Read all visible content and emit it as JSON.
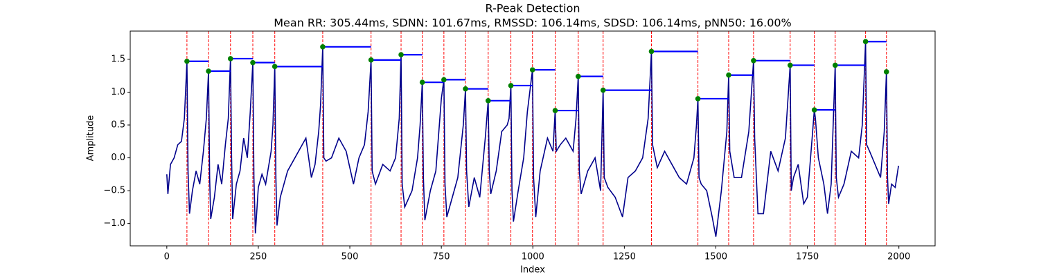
{
  "chart_data": {
    "type": "line",
    "title": "R-Peak Detection",
    "subtitle": "Mean RR: 305.44ms, SDNN: 101.67ms, RMSSD: 106.14ms, SDSD: 106.14ms, pNN50: 16.00%",
    "xlabel": "Index",
    "ylabel": "Amplitude",
    "xlim": [
      -99.95,
      2098.95
    ],
    "ylim": [
      -1.34,
      1.93
    ],
    "xticks": [
      0,
      250,
      500,
      750,
      1000,
      1250,
      1500,
      1750,
      2000
    ],
    "yticks": [
      {
        "value": -1.0,
        "label": "−1.0"
      },
      {
        "value": -0.5,
        "label": "−0.5"
      },
      {
        "value": 0.0,
        "label": "0.0"
      },
      0.5,
      {
        "value": 1.0,
        "label": "1.0"
      },
      1.5
    ],
    "x": [
      0,
      3,
      10,
      20,
      30,
      40,
      48,
      55,
      58,
      62,
      70,
      80,
      90,
      100,
      108,
      114,
      117,
      120,
      130,
      140,
      150,
      160,
      168,
      174,
      177,
      180,
      190,
      200,
      210,
      220,
      228,
      235,
      238,
      242,
      250,
      260,
      270,
      285,
      290,
      295,
      298,
      301,
      310,
      330,
      350,
      370,
      380,
      395,
      405,
      415,
      420,
      426,
      429,
      435,
      450,
      470,
      490,
      510,
      525,
      540,
      550,
      558,
      561,
      570,
      590,
      610,
      625,
      635,
      640,
      643,
      650,
      670,
      685,
      692,
      698,
      701,
      705,
      720,
      735,
      750,
      757,
      760,
      765,
      780,
      795,
      810,
      816,
      819,
      825,
      840,
      855,
      870,
      878,
      881,
      885,
      900,
      915,
      930,
      935,
      940,
      943,
      947,
      960,
      975,
      985,
      999,
      1002,
      1008,
      1020,
      1040,
      1055,
      1061,
      1064,
      1075,
      1090,
      1110,
      1118,
      1124,
      1127,
      1132,
      1150,
      1170,
      1185,
      1192,
      1195,
      1205,
      1225,
      1245,
      1260,
      1280,
      1300,
      1315,
      1324,
      1327,
      1340,
      1360,
      1380,
      1400,
      1420,
      1440,
      1447,
      1451,
      1454,
      1460,
      1475,
      1490,
      1500,
      1515,
      1530,
      1535,
      1538,
      1550,
      1570,
      1590,
      1603,
      1606,
      1615,
      1630,
      1650,
      1670,
      1690,
      1703,
      1706,
      1712,
      1725,
      1740,
      1750,
      1763,
      1769,
      1772,
      1780,
      1795,
      1805,
      1815,
      1826,
      1829,
      1835,
      1850,
      1870,
      1890,
      1900,
      1909,
      1912,
      1920,
      1935,
      1950,
      1960,
      1966,
      1969,
      1972,
      1980,
      1990,
      1999
    ],
    "series": [
      {
        "color": "#00008b",
        "values": [
          -0.25,
          -0.55,
          -0.1,
          0.0,
          0.2,
          0.25,
          0.6,
          1.47,
          -0.2,
          -0.85,
          -0.5,
          -0.2,
          -0.4,
          0.1,
          0.6,
          1.32,
          -0.3,
          -0.93,
          -0.6,
          -0.1,
          -0.4,
          0.2,
          0.6,
          1.51,
          0.0,
          -0.93,
          -0.4,
          -0.2,
          0.3,
          0.0,
          0.7,
          1.45,
          -0.3,
          -1.15,
          -0.45,
          -0.25,
          -0.4,
          0.1,
          0.5,
          1.39,
          -0.3,
          -1.03,
          -0.6,
          -0.2,
          0.0,
          0.2,
          0.3,
          -0.3,
          -0.1,
          0.4,
          0.8,
          1.69,
          0.0,
          -0.05,
          0.0,
          0.3,
          0.1,
          -0.4,
          0.0,
          0.2,
          0.7,
          1.49,
          -0.2,
          -0.4,
          -0.1,
          -0.2,
          0.0,
          0.6,
          1.57,
          -0.4,
          -0.75,
          -0.5,
          0.0,
          0.5,
          1.15,
          -0.3,
          -0.95,
          -0.5,
          -0.2,
          0.9,
          1.19,
          -0.4,
          -0.9,
          -0.6,
          -0.3,
          0.5,
          1.05,
          -0.2,
          -0.75,
          -0.3,
          -0.6,
          0.3,
          0.87,
          -0.2,
          -0.55,
          -0.2,
          0.4,
          0.5,
          0.6,
          1.1,
          -0.5,
          -0.97,
          -0.5,
          0.0,
          0.7,
          1.34,
          -0.3,
          -0.9,
          -0.2,
          0.3,
          0.1,
          0.72,
          0.1,
          0.2,
          0.3,
          0.1,
          0.6,
          1.24,
          -0.2,
          -0.55,
          -0.2,
          0.0,
          -0.5,
          1.03,
          -0.3,
          -0.45,
          -0.6,
          -0.9,
          -0.3,
          -0.2,
          0.0,
          0.6,
          1.62,
          0.2,
          -0.15,
          0.1,
          -0.1,
          -0.3,
          -0.4,
          0.0,
          0.5,
          0.9,
          -0.3,
          -0.4,
          -0.5,
          -0.9,
          -1.2,
          -0.5,
          0.4,
          1.26,
          0.1,
          -0.3,
          -0.3,
          0.4,
          1.48,
          0.3,
          -0.85,
          -0.85,
          0.1,
          -0.2,
          0.3,
          1.41,
          -0.5,
          -0.3,
          -0.1,
          -0.7,
          -0.6,
          0.3,
          0.73,
          0.6,
          0.0,
          -0.4,
          -0.85,
          -0.4,
          1.41,
          -0.3,
          -0.6,
          -0.4,
          0.1,
          0.0,
          0.5,
          1.77,
          0.2,
          0.1,
          -0.1,
          -0.3,
          0.4,
          1.31,
          -0.3,
          -0.7,
          -0.4,
          -0.45,
          -0.12
        ]
      }
    ],
    "peaks": {
      "color": "#008000",
      "line_color": "#ff0000",
      "rr_color": "#0000ff",
      "x": [
        55,
        114,
        174,
        235,
        295,
        426,
        558,
        640,
        698,
        757,
        816,
        878,
        940,
        999,
        1061,
        1124,
        1192,
        1324,
        1451,
        1535,
        1603,
        1703,
        1769,
        1826,
        1909,
        1966
      ],
      "values": [
        1.47,
        1.32,
        1.51,
        1.45,
        1.39,
        1.69,
        1.49,
        1.57,
        1.15,
        1.19,
        1.05,
        0.87,
        1.1,
        1.34,
        0.72,
        1.24,
        1.03,
        1.62,
        0.9,
        1.26,
        1.48,
        1.41,
        0.73,
        1.41,
        1.77,
        1.31
      ]
    }
  }
}
